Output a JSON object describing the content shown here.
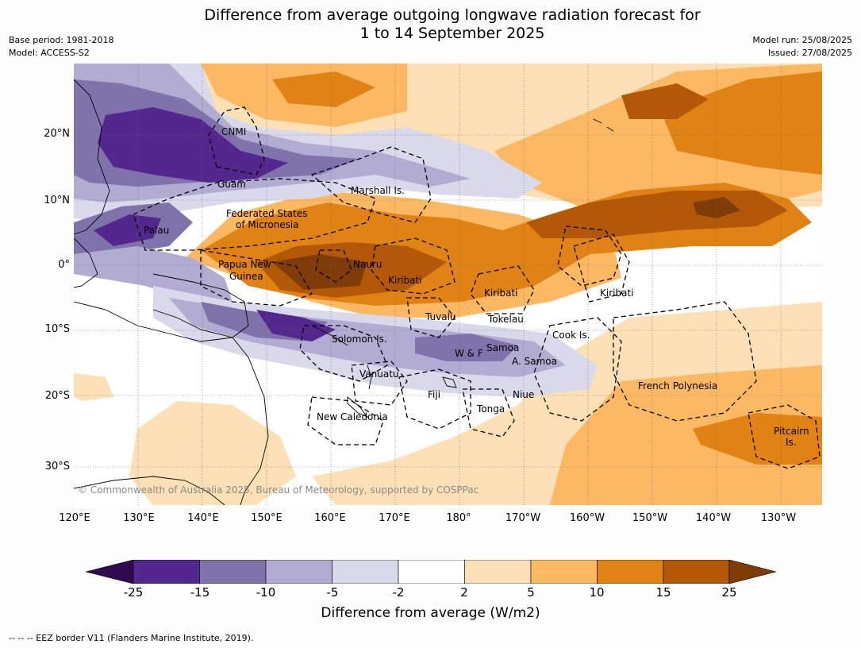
{
  "title_line1": "Difference from average outgoing longwave radiation forecast for",
  "title_line2": "1 to 14 September 2025",
  "base_period": "Base period: 1981-2018",
  "model": "Model: ACCESS-S2",
  "model_run": "Model run: 25/08/2025",
  "issued": "Issued: 27/08/2025",
  "lat_labels": [
    "20°N",
    "10°N",
    "0°",
    "10°S",
    "20°S",
    "30°S"
  ],
  "lon_labels": [
    "120°E",
    "130°E",
    "140°E",
    "150°E",
    "160°E",
    "170°E",
    "180°",
    "170°W",
    "160°W",
    "150°W",
    "140°W",
    "130°W"
  ],
  "place_labels": {
    "cnmi": "CNMI",
    "guam": "Guam",
    "marshall": "Marshall Is.",
    "fsm1": "Federated States",
    "fsm2": "of Micronesia",
    "palau": "Palau",
    "png1": "Papua New",
    "png2": "Guinea",
    "nauru": "Nauru",
    "kiribati_w": "Kiribati",
    "kiribati_c": "Kiribati",
    "kiribati_e": "Kiribati",
    "tuvalu": "Tuvalu",
    "tokelau": "Tokelau",
    "cook": "Cook Is.",
    "solomon": "Solomon Is.",
    "wf": "W & F",
    "samoa": "Samoa",
    "asamoa": "A. Samoa",
    "vanuatu": "Vanuatu",
    "fiji": "Fiji",
    "niue": "Niue",
    "tonga": "Tonga",
    "fp": "French Polynesia",
    "newcal": "New Caledonia",
    "pitcairn1": "Pitcairn",
    "pitcairn2": "Is."
  },
  "copyright": "© Commonwealth of Australia 2025, Bureau of Meteorology, supported by COSPPac",
  "colorbar": {
    "ticks": [
      "-25",
      "-15",
      "-10",
      "-5",
      "-2",
      "2",
      "5",
      "10",
      "15",
      "25"
    ],
    "colors": [
      "#300a4f",
      "#54278f",
      "#8073ac",
      "#b2abd2",
      "#d8daeb",
      "#ffffff",
      "#fee0b6",
      "#fdb863",
      "#e08214",
      "#b35806",
      "#7f3b08"
    ],
    "label": "Difference from average (W/m2)"
  },
  "footnote": "--  --  -- EEZ border V11 (Flanders Marine Institute, 2019)."
}
